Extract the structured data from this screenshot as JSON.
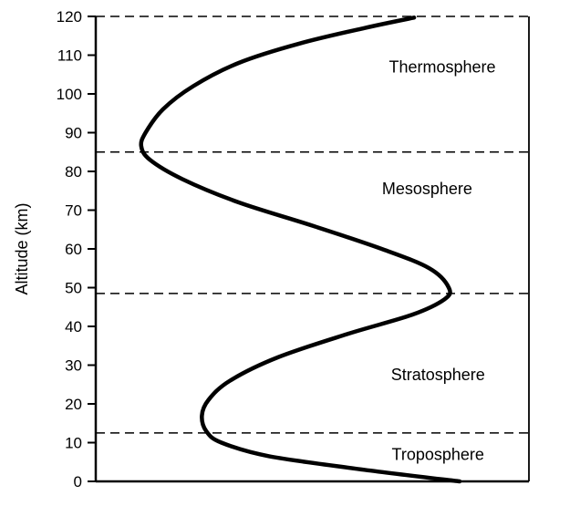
{
  "figure": {
    "background": "#ffffff",
    "ink": "#000000"
  },
  "chart_data": {
    "type": "line",
    "title": "",
    "xlabel": "",
    "ylabel": "Altitude (km)",
    "ylim": [
      0,
      120
    ],
    "xlim": [
      0,
      1
    ],
    "x_axis_note": "temperature axis unlabeled; x given as relative position 0-1",
    "y_ticks": [
      0,
      10,
      20,
      30,
      40,
      50,
      60,
      70,
      80,
      90,
      100,
      110,
      120
    ],
    "grid": false,
    "legend": "none",
    "series": [
      {
        "name": "temperature-profile",
        "points": [
          {
            "t": 0.84,
            "alt": 0
          },
          {
            "t": 0.62,
            "alt": 3
          },
          {
            "t": 0.4,
            "alt": 6.5
          },
          {
            "t": 0.29,
            "alt": 10
          },
          {
            "t": 0.255,
            "alt": 13
          },
          {
            "t": 0.245,
            "alt": 17
          },
          {
            "t": 0.26,
            "alt": 21
          },
          {
            "t": 0.31,
            "alt": 26
          },
          {
            "t": 0.42,
            "alt": 32
          },
          {
            "t": 0.58,
            "alt": 38
          },
          {
            "t": 0.73,
            "alt": 43
          },
          {
            "t": 0.805,
            "alt": 47
          },
          {
            "t": 0.815,
            "alt": 50
          },
          {
            "t": 0.77,
            "alt": 55
          },
          {
            "t": 0.66,
            "alt": 60
          },
          {
            "t": 0.5,
            "alt": 66
          },
          {
            "t": 0.33,
            "alt": 72
          },
          {
            "t": 0.2,
            "alt": 78
          },
          {
            "t": 0.125,
            "alt": 83
          },
          {
            "t": 0.105,
            "alt": 86.5
          },
          {
            "t": 0.115,
            "alt": 90
          },
          {
            "t": 0.155,
            "alt": 96
          },
          {
            "t": 0.225,
            "alt": 102
          },
          {
            "t": 0.33,
            "alt": 108
          },
          {
            "t": 0.47,
            "alt": 113
          },
          {
            "t": 0.62,
            "alt": 117
          },
          {
            "t": 0.735,
            "alt": 119.7
          }
        ]
      }
    ],
    "boundaries_km": [
      12.5,
      48.5,
      85,
      120
    ],
    "layers": [
      {
        "label": "Thermosphere",
        "label_alt_km": 107,
        "label_t": 0.8
      },
      {
        "label": "Mesosphere",
        "label_alt_km": 75.5,
        "label_t": 0.765
      },
      {
        "label": "Stratosphere",
        "label_alt_km": 27.5,
        "label_t": 0.79
      },
      {
        "label": "Troposphere",
        "label_alt_km": 7,
        "label_t": 0.79
      }
    ]
  }
}
